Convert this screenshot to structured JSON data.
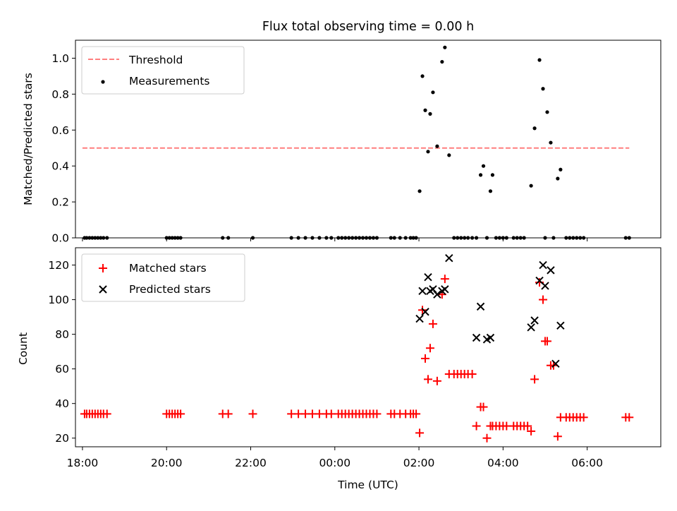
{
  "chart_data": [
    {
      "type": "scatter",
      "title": "Flux total observing time = 0.00 h",
      "ylabel": "Matched/Predicted stars",
      "xlim": [
        "17:50",
        "07:45"
      ],
      "ylim": [
        0,
        1.1
      ],
      "yticks": [
        "0.0",
        "0.2",
        "0.4",
        "0.6",
        "0.8",
        "1.0"
      ],
      "legend": {
        "position": "top-left",
        "entries": [
          "Threshold",
          "Measurements"
        ]
      },
      "threshold": {
        "name": "Threshold",
        "value": 0.5,
        "x_range": [
          "18:00",
          "07:00"
        ],
        "color": "#ff7f7f"
      },
      "series": [
        {
          "name": "Measurements",
          "color": "#000000",
          "points": [
            [
              "18:03",
              0
            ],
            [
              "18:06",
              0
            ],
            [
              "18:10",
              0
            ],
            [
              "18:14",
              0
            ],
            [
              "18:18",
              0
            ],
            [
              "18:22",
              0
            ],
            [
              "18:26",
              0
            ],
            [
              "18:30",
              0
            ],
            [
              "18:35",
              0
            ],
            [
              "20:00",
              0
            ],
            [
              "20:04",
              0
            ],
            [
              "20:08",
              0
            ],
            [
              "20:12",
              0
            ],
            [
              "20:16",
              0
            ],
            [
              "20:20",
              0
            ],
            [
              "21:20",
              0
            ],
            [
              "21:28",
              0
            ],
            [
              "22:03",
              0
            ],
            [
              "22:58",
              0
            ],
            [
              "23:08",
              0
            ],
            [
              "23:18",
              0
            ],
            [
              "23:28",
              0
            ],
            [
              "23:38",
              0
            ],
            [
              "23:48",
              0
            ],
            [
              "23:55",
              0
            ],
            [
              "00:05",
              0
            ],
            [
              "00:10",
              0
            ],
            [
              "00:15",
              0
            ],
            [
              "00:20",
              0
            ],
            [
              "00:25",
              0
            ],
            [
              "00:30",
              0
            ],
            [
              "00:35",
              0
            ],
            [
              "00:40",
              0
            ],
            [
              "00:45",
              0
            ],
            [
              "00:50",
              0
            ],
            [
              "00:55",
              0
            ],
            [
              "01:00",
              0
            ],
            [
              "01:20",
              0
            ],
            [
              "01:25",
              0
            ],
            [
              "01:33",
              0
            ],
            [
              "01:41",
              0
            ],
            [
              "01:48",
              0
            ],
            [
              "01:52",
              0
            ],
            [
              "01:56",
              0
            ],
            [
              "02:01",
              0.26
            ],
            [
              "02:05",
              0.9
            ],
            [
              "02:09",
              0.71
            ],
            [
              "02:13",
              0.48
            ],
            [
              "02:16",
              0.69
            ],
            [
              "02:20",
              0.81
            ],
            [
              "02:26",
              0.51
            ],
            [
              "02:33",
              0.98
            ],
            [
              "02:37",
              1.06
            ],
            [
              "02:43",
              0.46
            ],
            [
              "02:50",
              0
            ],
            [
              "02:55",
              0
            ],
            [
              "03:00",
              0
            ],
            [
              "03:05",
              0
            ],
            [
              "03:10",
              0
            ],
            [
              "03:16",
              0
            ],
            [
              "03:22",
              0
            ],
            [
              "03:28",
              0.35
            ],
            [
              "03:32",
              0.4
            ],
            [
              "03:37",
              0
            ],
            [
              "03:42",
              0.26
            ],
            [
              "03:45",
              0.35
            ],
            [
              "03:50",
              0
            ],
            [
              "03:55",
              0
            ],
            [
              "04:00",
              0
            ],
            [
              "04:05",
              0
            ],
            [
              "04:15",
              0
            ],
            [
              "04:20",
              0
            ],
            [
              "04:25",
              0
            ],
            [
              "04:30",
              0
            ],
            [
              "04:40",
              0.29
            ],
            [
              "04:45",
              0.61
            ],
            [
              "04:52",
              0.99
            ],
            [
              "04:57",
              0.83
            ],
            [
              "05:00",
              0
            ],
            [
              "05:03",
              0.7
            ],
            [
              "05:08",
              0.53
            ],
            [
              "05:12",
              0
            ],
            [
              "05:18",
              0.33
            ],
            [
              "05:22",
              0.38
            ],
            [
              "05:30",
              0
            ],
            [
              "05:35",
              0
            ],
            [
              "05:40",
              0
            ],
            [
              "05:45",
              0
            ],
            [
              "05:50",
              0
            ],
            [
              "05:55",
              0
            ],
            [
              "06:55",
              0
            ],
            [
              "07:00",
              0
            ]
          ]
        }
      ]
    },
    {
      "type": "scatter",
      "xlabel": "Time (UTC)",
      "ylabel": "Count",
      "xlim": [
        "17:50",
        "07:45"
      ],
      "ylim": [
        15,
        130
      ],
      "xticks": [
        "18:00",
        "20:00",
        "22:00",
        "00:00",
        "02:00",
        "04:00",
        "06:00"
      ],
      "yticks": [
        "20",
        "40",
        "60",
        "80",
        "100",
        "120"
      ],
      "legend": {
        "position": "top-left",
        "entries": [
          "Matched stars",
          "Predicted stars"
        ]
      },
      "series": [
        {
          "name": "Matched stars",
          "marker": "plus",
          "color": "#ff0000",
          "points": [
            [
              "18:03",
              34
            ],
            [
              "18:06",
              34
            ],
            [
              "18:10",
              34
            ],
            [
              "18:14",
              34
            ],
            [
              "18:18",
              34
            ],
            [
              "18:22",
              34
            ],
            [
              "18:26",
              34
            ],
            [
              "18:30",
              34
            ],
            [
              "18:35",
              34
            ],
            [
              "20:00",
              34
            ],
            [
              "20:04",
              34
            ],
            [
              "20:08",
              34
            ],
            [
              "20:12",
              34
            ],
            [
              "20:16",
              34
            ],
            [
              "20:20",
              34
            ],
            [
              "21:20",
              34
            ],
            [
              "21:28",
              34
            ],
            [
              "22:03",
              34
            ],
            [
              "22:58",
              34
            ],
            [
              "23:08",
              34
            ],
            [
              "23:18",
              34
            ],
            [
              "23:28",
              34
            ],
            [
              "23:38",
              34
            ],
            [
              "23:48",
              34
            ],
            [
              "23:55",
              34
            ],
            [
              "00:05",
              34
            ],
            [
              "00:10",
              34
            ],
            [
              "00:15",
              34
            ],
            [
              "00:20",
              34
            ],
            [
              "00:25",
              34
            ],
            [
              "00:30",
              34
            ],
            [
              "00:35",
              34
            ],
            [
              "00:40",
              34
            ],
            [
              "00:45",
              34
            ],
            [
              "00:50",
              34
            ],
            [
              "00:55",
              34
            ],
            [
              "01:00",
              34
            ],
            [
              "01:20",
              34
            ],
            [
              "01:25",
              34
            ],
            [
              "01:33",
              34
            ],
            [
              "01:41",
              34
            ],
            [
              "01:48",
              34
            ],
            [
              "01:52",
              34
            ],
            [
              "01:56",
              34
            ],
            [
              "02:01",
              23
            ],
            [
              "02:05",
              94
            ],
            [
              "02:09",
              66
            ],
            [
              "02:13",
              54
            ],
            [
              "02:16",
              72
            ],
            [
              "02:20",
              86
            ],
            [
              "02:26",
              53
            ],
            [
              "02:33",
              103
            ],
            [
              "02:37",
              112
            ],
            [
              "02:43",
              57
            ],
            [
              "02:50",
              57
            ],
            [
              "02:55",
              57
            ],
            [
              "03:00",
              57
            ],
            [
              "03:05",
              57
            ],
            [
              "03:10",
              57
            ],
            [
              "03:16",
              57
            ],
            [
              "03:22",
              27
            ],
            [
              "03:28",
              38
            ],
            [
              "03:32",
              38
            ],
            [
              "03:37",
              20
            ],
            [
              "03:42",
              27
            ],
            [
              "03:45",
              27
            ],
            [
              "03:50",
              27
            ],
            [
              "03:55",
              27
            ],
            [
              "04:00",
              27
            ],
            [
              "04:05",
              27
            ],
            [
              "04:15",
              27
            ],
            [
              "04:20",
              27
            ],
            [
              "04:25",
              27
            ],
            [
              "04:30",
              27
            ],
            [
              "04:35",
              27
            ],
            [
              "04:40",
              24
            ],
            [
              "04:45",
              54
            ],
            [
              "04:52",
              110
            ],
            [
              "04:57",
              100
            ],
            [
              "05:00",
              76
            ],
            [
              "05:03",
              76
            ],
            [
              "05:08",
              62
            ],
            [
              "05:12",
              62
            ],
            [
              "05:18",
              21
            ],
            [
              "05:22",
              32
            ],
            [
              "05:30",
              32
            ],
            [
              "05:35",
              32
            ],
            [
              "05:40",
              32
            ],
            [
              "05:45",
              32
            ],
            [
              "05:50",
              32
            ],
            [
              "05:55",
              32
            ],
            [
              "06:55",
              32
            ],
            [
              "07:00",
              32
            ]
          ]
        },
        {
          "name": "Predicted stars",
          "marker": "x",
          "color": "#000000",
          "points": [
            [
              "02:01",
              89
            ],
            [
              "02:05",
              105
            ],
            [
              "02:09",
              93
            ],
            [
              "02:13",
              113
            ],
            [
              "02:16",
              105
            ],
            [
              "02:20",
              106
            ],
            [
              "02:26",
              103
            ],
            [
              "02:33",
              105
            ],
            [
              "02:37",
              106
            ],
            [
              "02:43",
              124
            ],
            [
              "03:22",
              78
            ],
            [
              "03:28",
              96
            ],
            [
              "03:37",
              77
            ],
            [
              "03:42",
              78
            ],
            [
              "04:40",
              84
            ],
            [
              "04:45",
              88
            ],
            [
              "04:52",
              111
            ],
            [
              "04:57",
              120
            ],
            [
              "05:00",
              108
            ],
            [
              "05:08",
              117
            ],
            [
              "05:15",
              63
            ],
            [
              "05:22",
              85
            ]
          ]
        }
      ]
    }
  ]
}
